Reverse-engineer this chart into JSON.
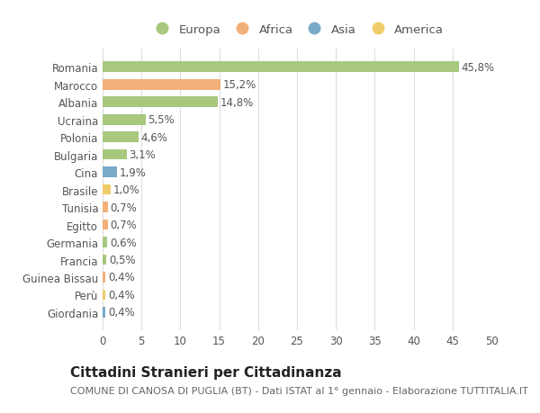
{
  "countries": [
    "Romania",
    "Marocco",
    "Albania",
    "Ucraina",
    "Polonia",
    "Bulgaria",
    "Cina",
    "Brasile",
    "Tunisia",
    "Egitto",
    "Germania",
    "Francia",
    "Guinea Bissau",
    "Perù",
    "Giordania"
  ],
  "values": [
    45.8,
    15.2,
    14.8,
    5.5,
    4.6,
    3.1,
    1.9,
    1.0,
    0.7,
    0.7,
    0.6,
    0.5,
    0.4,
    0.4,
    0.4
  ],
  "labels": [
    "45,8%",
    "15,2%",
    "14,8%",
    "5,5%",
    "4,6%",
    "3,1%",
    "1,9%",
    "1,0%",
    "0,7%",
    "0,7%",
    "0,6%",
    "0,5%",
    "0,4%",
    "0,4%",
    "0,4%"
  ],
  "continents": [
    "Europa",
    "Africa",
    "Europa",
    "Europa",
    "Europa",
    "Europa",
    "Asia",
    "America",
    "Africa",
    "Africa",
    "Europa",
    "Europa",
    "Africa",
    "America",
    "Asia"
  ],
  "continent_colors": {
    "Europa": "#a8c87e",
    "Africa": "#f2b07a",
    "Asia": "#7aaac8",
    "America": "#f0cc6a"
  },
  "legend_order": [
    "Europa",
    "Africa",
    "Asia",
    "America"
  ],
  "xlim": [
    0,
    50
  ],
  "xticks": [
    0,
    5,
    10,
    15,
    20,
    25,
    30,
    35,
    40,
    45,
    50
  ],
  "title": "Cittadini Stranieri per Cittadinanza",
  "subtitle": "COMUNE DI CANOSA DI PUGLIA (BT) - Dati ISTAT al 1° gennaio - Elaborazione TUTTITALIA.IT",
  "background_color": "#ffffff",
  "grid_color": "#dddddd",
  "bar_height": 0.6,
  "label_fontsize": 8.5,
  "tick_fontsize": 8.5,
  "title_fontsize": 11,
  "subtitle_fontsize": 8
}
